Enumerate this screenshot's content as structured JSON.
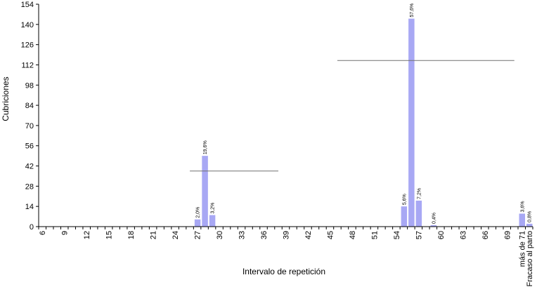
{
  "chart_data": {
    "type": "bar",
    "title": "",
    "xlabel": "Intervalo de repetición",
    "ylabel": "Cubriciones",
    "ylim": [
      0,
      154
    ],
    "yticks": [
      0,
      14,
      28,
      42,
      56,
      70,
      84,
      98,
      112,
      126,
      140,
      154
    ],
    "grid": false,
    "legend": "none",
    "colors": {
      "bar": "#a8a8f4",
      "axis": "#000000",
      "reference_line": "#707070"
    },
    "categories": [
      "6",
      "7",
      "8",
      "9",
      "10",
      "11",
      "12",
      "13",
      "14",
      "15",
      "16",
      "17",
      "18",
      "19",
      "20",
      "21",
      "22",
      "23",
      "24",
      "25",
      "26",
      "27",
      "28",
      "29",
      "30",
      "31",
      "32",
      "33",
      "34",
      "35",
      "36",
      "37",
      "38",
      "39",
      "40",
      "41",
      "42",
      "43",
      "44",
      "45",
      "46",
      "47",
      "48",
      "49",
      "50",
      "51",
      "52",
      "53",
      "54",
      "55",
      "56",
      "57",
      "58",
      "59",
      "60",
      "61",
      "62",
      "63",
      "64",
      "65",
      "66",
      "67",
      "68",
      "69",
      "70",
      "más de 71",
      "Fracaso al parto"
    ],
    "tick_labels_shown": [
      "6",
      "9",
      "12",
      "15",
      "18",
      "21",
      "24",
      "27",
      "30",
      "33",
      "36",
      "39",
      "42",
      "45",
      "48",
      "51",
      "54",
      "57",
      "60",
      "63",
      "66",
      "69",
      "más de 71",
      "Fracaso al parto"
    ],
    "values": [
      0,
      0,
      0,
      0,
      0,
      0,
      0,
      0,
      0,
      0,
      0,
      0,
      0,
      0,
      0,
      0,
      0,
      0,
      0,
      0,
      0,
      5,
      49,
      8,
      0,
      0,
      0,
      0,
      0,
      0,
      0,
      0,
      0,
      0,
      0,
      0,
      0,
      0,
      0,
      0,
      0,
      0,
      0,
      0,
      0,
      0,
      0,
      0,
      0,
      14,
      144,
      18,
      0,
      1,
      0,
      0,
      0,
      0,
      0,
      0,
      0,
      0,
      0,
      0,
      0,
      9,
      2
    ],
    "data_labels": [
      {
        "category": "27",
        "text": "2,0%"
      },
      {
        "category": "28",
        "text": "19,6%"
      },
      {
        "category": "29",
        "text": "3,2%"
      },
      {
        "category": "55",
        "text": "5,6%"
      },
      {
        "category": "56",
        "text": "57,6%"
      },
      {
        "category": "57",
        "text": "7,2%"
      },
      {
        "category": "59",
        "text": "0,4%"
      },
      {
        "category": "más de 71",
        "text": "3,6%"
      },
      {
        "category": "Fracaso al parto",
        "text": "0,8%"
      }
    ],
    "reference_lines": [
      {
        "x_start": 26,
        "x_end": 38,
        "y": 38.5
      },
      {
        "x_start": 46,
        "x_end": 70,
        "y": 115
      }
    ]
  }
}
